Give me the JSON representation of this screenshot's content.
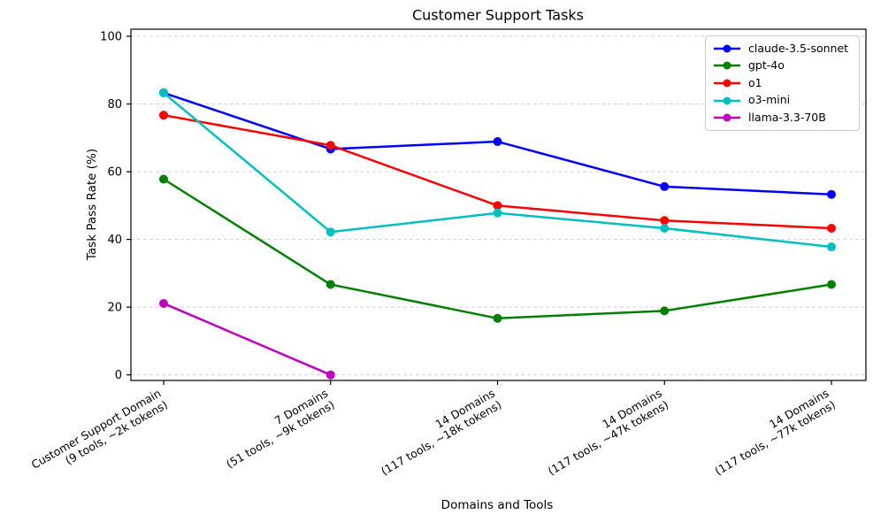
{
  "chart_data": {
    "type": "line",
    "title": "Customer Support Tasks",
    "xlabel": "Domains and Tools",
    "ylabel": "Task Pass Rate (%)",
    "ylim": [
      0,
      100
    ],
    "yticks": [
      0,
      20,
      40,
      60,
      80,
      100
    ],
    "grid": "horizontal dashed light-gray",
    "legend_position": "upper right",
    "categories": [
      {
        "line1": "Customer Support Domain",
        "line2": "(9 tools, ~2k tokens)"
      },
      {
        "line1": "7 Domains",
        "line2": "(51 tools, ~9k tokens)"
      },
      {
        "line1": "14 Domains",
        "line2": "(117 tools, ~18k tokens)"
      },
      {
        "line1": "14 Domains",
        "line2": "(117 tools, ~47k tokens)"
      },
      {
        "line1": "14 Domains",
        "line2": "(117 tools, ~77k tokens)"
      }
    ],
    "series": [
      {
        "name": "claude-3.5-sonnet",
        "color": "#0000FF",
        "values": [
          83.3,
          66.7,
          68.9,
          55.6,
          53.3
        ]
      },
      {
        "name": "gpt-4o",
        "color": "#008000",
        "values": [
          57.8,
          26.7,
          16.7,
          18.9,
          26.7
        ]
      },
      {
        "name": "o1",
        "color": "#FF0000",
        "values": [
          76.7,
          67.8,
          50.0,
          45.6,
          43.3
        ]
      },
      {
        "name": "o3-mini",
        "color": "#00BFBF",
        "values": [
          83.3,
          42.2,
          47.8,
          43.3,
          37.8
        ]
      },
      {
        "name": "llama-3.3-70B",
        "color": "#BF00BF",
        "values": [
          21.1,
          0.0,
          null,
          null,
          null
        ]
      }
    ]
  }
}
